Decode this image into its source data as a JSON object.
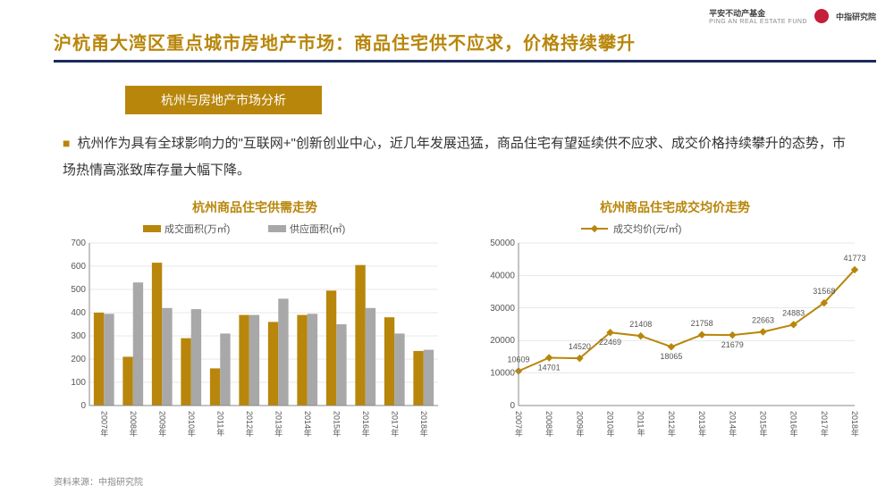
{
  "header": {
    "logo1_line1": "平安不动产基金",
    "logo1_line2": "PING AN REAL ESTATE FUND",
    "logo2_text": "中指研究院"
  },
  "title": "沪杭甬大湾区重点城市房地产市场：商品住宅供不应求，价格持续攀升",
  "section_tag": "杭州与房地产市场分析",
  "bullet_text": "杭州作为具有全球影响力的\"互联网+\"创新创业中心，近几年发展迅猛，商品住宅有望延续供不应求、成交价格持续攀升的态势，市场热情高涨致库存量大幅下降。",
  "source_label": "资料来源：中指研究院",
  "bar_chart": {
    "type": "bar",
    "title": "杭州商品住宅供需走势",
    "legend": {
      "s1": "成交面积(万㎡)",
      "s2": "供应面积(㎡)"
    },
    "categories": [
      "2007年",
      "2008年",
      "2009年",
      "2010年",
      "2011年",
      "2012年",
      "2013年",
      "2014年",
      "2015年",
      "2016年",
      "2017年",
      "2018年"
    ],
    "series1": [
      400,
      210,
      615,
      290,
      160,
      390,
      360,
      390,
      495,
      605,
      380,
      235
    ],
    "series2": [
      395,
      530,
      420,
      415,
      310,
      390,
      460,
      395,
      350,
      420,
      310,
      240
    ],
    "colors": {
      "s1": "#b8860b",
      "s2": "#a8a8a8",
      "grid": "#d0d0d0",
      "axis": "#888"
    },
    "ylim": [
      0,
      700
    ],
    "ytick_step": 100,
    "bar_width": 0.35
  },
  "line_chart": {
    "type": "line",
    "title": "杭州商品住宅成交均价走势",
    "legend": "成交均价(元/㎡)",
    "categories": [
      "2007年",
      "2008年",
      "2009年",
      "2010年",
      "2011年",
      "2012年",
      "2013年",
      "2014年",
      "2015年",
      "2016年",
      "2017年",
      "2018年"
    ],
    "values": [
      10609,
      14701,
      14520,
      22469,
      21408,
      18065,
      21758,
      21679,
      22663,
      24883,
      31568,
      41773
    ],
    "colors": {
      "line": "#b8860b",
      "marker_fill": "#b8860b",
      "grid": "#d0d0d0",
      "axis": "#888",
      "label": "#555"
    },
    "ylim": [
      0,
      50000
    ],
    "ytick_step": 10000,
    "marker_size": 4
  }
}
